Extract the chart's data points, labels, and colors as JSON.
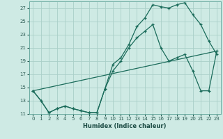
{
  "xlabel": "Humidex (Indice chaleur)",
  "bg_color": "#ceeae4",
  "grid_color": "#aacfc8",
  "line_color": "#1a6b5a",
  "xlim": [
    -0.5,
    23.5
  ],
  "ylim": [
    11,
    28
  ],
  "yticks": [
    11,
    13,
    15,
    17,
    19,
    21,
    23,
    25,
    27
  ],
  "xticks": [
    0,
    1,
    2,
    3,
    4,
    5,
    6,
    7,
    8,
    9,
    10,
    11,
    12,
    13,
    14,
    15,
    16,
    17,
    18,
    19,
    20,
    21,
    22,
    23
  ],
  "line1_x": [
    0,
    1,
    2,
    3,
    4,
    5,
    6,
    7,
    8,
    9,
    10,
    11,
    12,
    13,
    14,
    15,
    16,
    17,
    18,
    19,
    20,
    21,
    22,
    23
  ],
  "line1_y": [
    14.5,
    13.0,
    11.2,
    11.8,
    12.2,
    11.8,
    11.5,
    11.2,
    11.2,
    14.8,
    18.5,
    19.5,
    21.5,
    24.2,
    25.5,
    27.5,
    27.2,
    27.0,
    27.5,
    27.8,
    26.0,
    24.5,
    22.0,
    20.0
  ],
  "line2_x": [
    0,
    1,
    2,
    3,
    4,
    5,
    6,
    7,
    8,
    9,
    10,
    11,
    12,
    13,
    14,
    15,
    16,
    17,
    18,
    19,
    20,
    21,
    22,
    23
  ],
  "line2_y": [
    14.5,
    13.0,
    11.2,
    11.8,
    12.2,
    11.8,
    11.5,
    11.2,
    11.2,
    14.8,
    17.5,
    19.0,
    21.0,
    22.5,
    23.5,
    24.5,
    21.0,
    19.0,
    19.5,
    20.0,
    17.5,
    14.5,
    14.5,
    20.5
  ],
  "line3_x": [
    0,
    23
  ],
  "line3_y": [
    14.5,
    20.5
  ]
}
